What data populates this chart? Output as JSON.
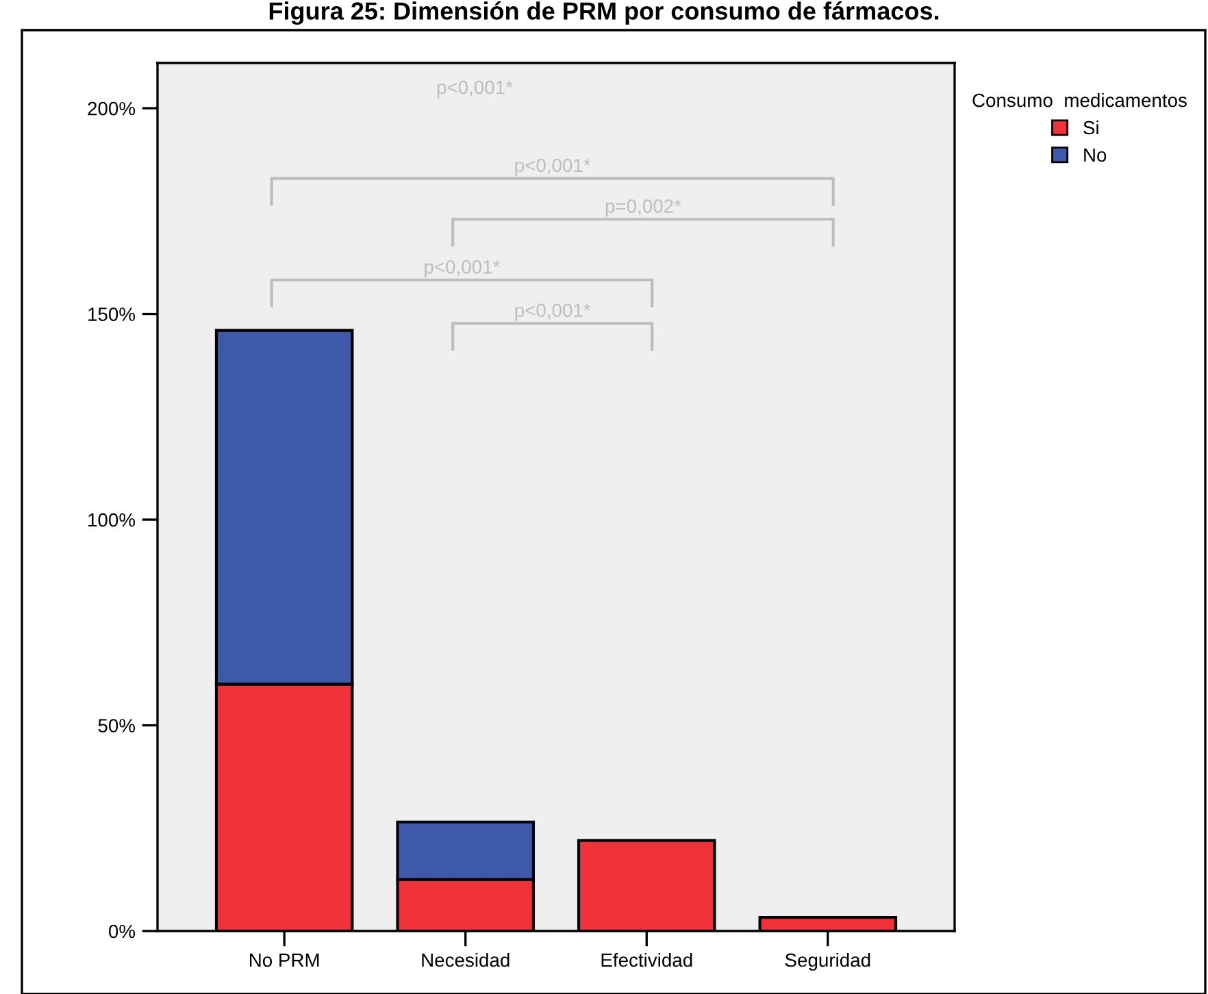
{
  "chart_data": {
    "type": "bar",
    "title": "Figura 25: Dimensión de PRM por consumo de fármacos.",
    "categories": [
      "No PRM",
      "Necesidad",
      "Efectividad",
      "Seguridad"
    ],
    "stacked": true,
    "series": [
      {
        "name": "Si",
        "color": "#f0333a",
        "values": [
          60,
          12.5,
          22,
          3.3
        ]
      },
      {
        "name": "No",
        "color": "#3e58aa",
        "values": [
          86,
          14,
          null,
          null
        ]
      }
    ],
    "ylim": [
      0,
      211
    ],
    "yticks": [
      {
        "value": 0,
        "label": "0%"
      },
      {
        "value": 50,
        "label": "50%"
      },
      {
        "value": 100,
        "label": "100%"
      },
      {
        "value": 150,
        "label": "150%"
      },
      {
        "value": 200,
        "label": "200%"
      }
    ],
    "legend": "top right",
    "legend_title": "Consumo  medicamentos",
    "grid": false,
    "annotations": [
      "p<0,001*",
      "p<0,001*",
      "p=0,002*",
      "p<0,001*",
      "p<0,001*"
    ]
  }
}
